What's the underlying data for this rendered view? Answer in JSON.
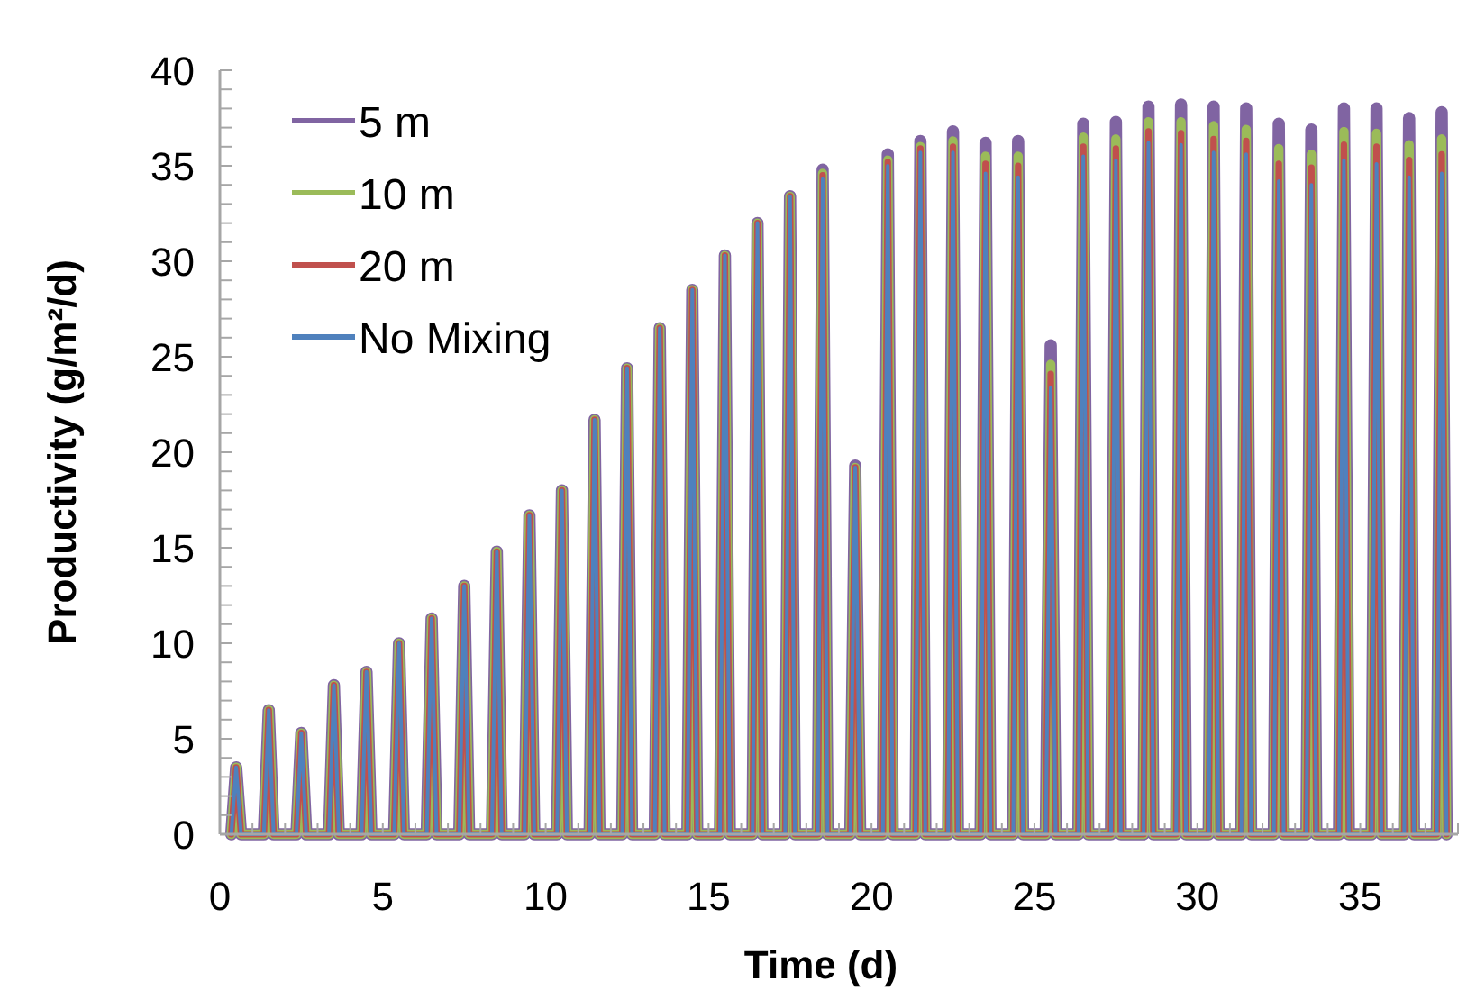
{
  "chart_data": {
    "type": "line",
    "xlabel": "Time (d)",
    "ylabel": "Productivity (g/m²/d)",
    "xlim": [
      0,
      38
    ],
    "xticks": [
      0,
      {
        "value": 1,
        "label": null
      },
      {
        "value": 2,
        "label": null
      },
      {
        "value": 3,
        "label": null
      },
      {
        "value": 4,
        "label": null
      },
      5,
      {
        "value": 6,
        "label": null
      },
      {
        "value": 7,
        "label": null
      },
      {
        "value": 8,
        "label": null
      },
      {
        "value": 9,
        "label": null
      },
      10,
      {
        "value": 11,
        "label": null
      },
      {
        "value": 12,
        "label": null
      },
      {
        "value": 13,
        "label": null
      },
      {
        "value": 14,
        "label": null
      },
      15,
      {
        "value": 16,
        "label": null
      },
      {
        "value": 17,
        "label": null
      },
      {
        "value": 18,
        "label": null
      },
      {
        "value": 19,
        "label": null
      },
      20,
      {
        "value": 21,
        "label": null
      },
      {
        "value": 22,
        "label": null
      },
      {
        "value": 23,
        "label": null
      },
      {
        "value": 24,
        "label": null
      },
      25,
      {
        "value": 26,
        "label": null
      },
      {
        "value": 27,
        "label": null
      },
      {
        "value": 28,
        "label": null
      },
      {
        "value": 29,
        "label": null
      },
      30,
      {
        "value": 31,
        "label": null
      },
      {
        "value": 32,
        "label": null
      },
      {
        "value": 33,
        "label": null
      },
      {
        "value": 34,
        "label": null
      },
      35,
      {
        "value": 36,
        "label": null
      },
      {
        "value": 37,
        "label": null
      },
      {
        "value": 38,
        "label": null
      }
    ],
    "ylim": [
      0,
      40
    ],
    "yticks": [
      0,
      {
        "value": 1,
        "label": null
      },
      {
        "value": 2,
        "label": null
      },
      {
        "value": 3,
        "label": null
      },
      {
        "value": 4,
        "label": null
      },
      5,
      {
        "value": 6,
        "label": null
      },
      {
        "value": 7,
        "label": null
      },
      {
        "value": 8,
        "label": null
      },
      {
        "value": 9,
        "label": null
      },
      10,
      {
        "value": 11,
        "label": null
      },
      {
        "value": 12,
        "label": null
      },
      {
        "value": 13,
        "label": null
      },
      {
        "value": 14,
        "label": null
      },
      15,
      {
        "value": 16,
        "label": null
      },
      {
        "value": 17,
        "label": null
      },
      {
        "value": 18,
        "label": null
      },
      {
        "value": 19,
        "label": null
      },
      20,
      {
        "value": 21,
        "label": null
      },
      {
        "value": 22,
        "label": null
      },
      {
        "value": 23,
        "label": null
      },
      {
        "value": 24,
        "label": null
      },
      25,
      {
        "value": 26,
        "label": null
      },
      {
        "value": 27,
        "label": null
      },
      {
        "value": 28,
        "label": null
      },
      {
        "value": 29,
        "label": null
      },
      30,
      {
        "value": 31,
        "label": null
      },
      {
        "value": 32,
        "label": null
      },
      {
        "value": 33,
        "label": null
      },
      {
        "value": 34,
        "label": null
      },
      35,
      {
        "value": 36,
        "label": null
      },
      {
        "value": 37,
        "label": null
      },
      {
        "value": 38,
        "label": null
      },
      {
        "value": 39,
        "label": null
      },
      40
    ],
    "grid": false,
    "legend": "top left",
    "marker": "none",
    "line_style": "solid",
    "x": [
      0.35,
      0.5,
      0.65,
      1.35,
      1.5,
      1.65,
      2.35,
      2.5,
      2.65,
      3.35,
      3.5,
      3.65,
      4.35,
      4.5,
      4.65,
      5.35,
      5.5,
      5.65,
      6.35,
      6.5,
      6.65,
      7.35,
      7.5,
      7.65,
      8.35,
      8.5,
      8.65,
      9.35,
      9.5,
      9.65,
      10.35,
      10.5,
      10.65,
      11.35,
      11.5,
      11.65,
      12.35,
      12.5,
      12.65,
      13.35,
      13.5,
      13.65,
      14.35,
      14.5,
      14.65,
      15.35,
      15.5,
      15.65,
      16.35,
      16.5,
      16.65,
      17.35,
      17.5,
      17.65,
      18.35,
      18.5,
      18.65,
      19.35,
      19.5,
      19.65,
      20.35,
      20.5,
      20.65,
      21.35,
      21.5,
      21.65,
      22.35,
      22.5,
      22.65,
      23.35,
      23.5,
      23.65,
      24.35,
      24.5,
      24.65,
      25.35,
      25.5,
      25.65,
      26.35,
      26.5,
      26.65,
      27.35,
      27.5,
      27.65,
      28.35,
      28.5,
      28.65,
      29.35,
      29.5,
      29.65,
      30.35,
      30.5,
      30.65,
      31.35,
      31.5,
      31.65,
      32.35,
      32.5,
      32.65,
      33.35,
      33.5,
      33.65,
      34.35,
      34.5,
      34.65,
      35.35,
      35.5,
      35.65,
      36.35,
      36.5,
      36.65,
      37.35,
      37.5,
      37.65
    ],
    "series": [
      {
        "name": "5 m",
        "color": "#8064a2",
        "values": [
          0,
          3.5,
          0,
          0,
          6.5,
          0,
          0,
          5.3,
          0,
          0,
          7.8,
          0,
          0,
          8.5,
          0,
          0,
          10.0,
          0,
          0,
          11.3,
          0,
          0,
          13.0,
          0,
          0,
          14.8,
          0,
          0,
          16.7,
          0,
          0,
          18.0,
          0,
          0,
          21.7,
          0,
          0,
          24.4,
          0,
          0,
          26.5,
          0,
          0,
          28.5,
          0,
          0,
          30.3,
          0,
          0,
          32.0,
          0,
          0,
          33.4,
          0,
          0,
          34.8,
          0,
          0,
          19.3,
          0,
          0,
          35.6,
          0,
          0,
          36.3,
          0,
          0,
          36.8,
          0,
          0,
          36.2,
          0,
          0,
          36.3,
          0,
          0,
          25.6,
          0,
          0,
          37.2,
          0,
          0,
          37.3,
          0,
          0,
          38.1,
          0,
          0,
          38.2,
          0,
          0,
          38.1,
          0,
          0,
          38.0,
          0,
          0,
          37.2,
          0,
          0,
          36.9,
          0,
          0,
          38.0,
          0,
          0,
          38.0,
          0,
          0,
          37.5,
          0,
          0,
          37.8,
          0
        ]
      },
      {
        "name": "10 m",
        "color": "#9bbb59",
        "values": [
          0,
          3.5,
          0,
          0,
          6.5,
          0,
          0,
          5.3,
          0,
          0,
          7.8,
          0,
          0,
          8.5,
          0,
          0,
          10.0,
          0,
          0,
          11.3,
          0,
          0,
          13.0,
          0,
          0,
          14.8,
          0,
          0,
          16.7,
          0,
          0,
          18.0,
          0,
          0,
          21.7,
          0,
          0,
          24.4,
          0,
          0,
          26.5,
          0,
          0,
          28.5,
          0,
          0,
          30.3,
          0,
          0,
          32.0,
          0,
          0,
          33.4,
          0,
          0,
          34.6,
          0,
          0,
          19.2,
          0,
          0,
          35.3,
          0,
          0,
          36.0,
          0,
          0,
          36.3,
          0,
          0,
          35.5,
          0,
          0,
          35.5,
          0,
          0,
          24.6,
          0,
          0,
          36.5,
          0,
          0,
          36.4,
          0,
          0,
          37.3,
          0,
          0,
          37.3,
          0,
          0,
          37.1,
          0,
          0,
          36.9,
          0,
          0,
          35.9,
          0,
          0,
          35.6,
          0,
          0,
          36.8,
          0,
          0,
          36.7,
          0,
          0,
          36.1,
          0,
          0,
          36.4,
          0
        ]
      },
      {
        "name": "20 m",
        "color": "#c0504d",
        "values": [
          0,
          3.5,
          0,
          0,
          6.5,
          0,
          0,
          5.3,
          0,
          0,
          7.8,
          0,
          0,
          8.5,
          0,
          0,
          10.0,
          0,
          0,
          11.3,
          0,
          0,
          13.0,
          0,
          0,
          14.8,
          0,
          0,
          16.7,
          0,
          0,
          18.0,
          0,
          0,
          21.7,
          0,
          0,
          24.4,
          0,
          0,
          26.5,
          0,
          0,
          28.5,
          0,
          0,
          30.3,
          0,
          0,
          32.0,
          0,
          0,
          33.4,
          0,
          0,
          34.5,
          0,
          0,
          19.2,
          0,
          0,
          35.2,
          0,
          0,
          35.9,
          0,
          0,
          36.0,
          0,
          0,
          35.1,
          0,
          0,
          35.0,
          0,
          0,
          24.1,
          0,
          0,
          36.0,
          0,
          0,
          35.9,
          0,
          0,
          36.8,
          0,
          0,
          36.7,
          0,
          0,
          36.4,
          0,
          0,
          36.3,
          0,
          0,
          35.1,
          0,
          0,
          34.9,
          0,
          0,
          36.1,
          0,
          0,
          36.0,
          0,
          0,
          35.3,
          0,
          0,
          35.6,
          0
        ]
      },
      {
        "name": "No Mixing",
        "color": "#4f81bd",
        "values": [
          0,
          3.5,
          0,
          0,
          6.5,
          0,
          0,
          5.3,
          0,
          0,
          7.8,
          0,
          0,
          8.5,
          0,
          0,
          10.0,
          0,
          0,
          11.3,
          0,
          0,
          13.0,
          0,
          0,
          14.8,
          0,
          0,
          16.7,
          0,
          0,
          18.0,
          0,
          0,
          21.7,
          0,
          0,
          24.4,
          0,
          0,
          26.5,
          0,
          0,
          28.5,
          0,
          0,
          30.3,
          0,
          0,
          32.0,
          0,
          0,
          33.4,
          0,
          0,
          34.3,
          0,
          0,
          19.2,
          0,
          0,
          35.0,
          0,
          0,
          35.7,
          0,
          0,
          35.7,
          0,
          0,
          34.6,
          0,
          0,
          34.4,
          0,
          0,
          23.4,
          0,
          0,
          35.5,
          0,
          0,
          35.3,
          0,
          0,
          36.2,
          0,
          0,
          36.1,
          0,
          0,
          35.7,
          0,
          0,
          35.6,
          0,
          0,
          34.2,
          0,
          0,
          34.0,
          0,
          0,
          35.3,
          0,
          0,
          35.1,
          0,
          0,
          34.4,
          0,
          0,
          34.6,
          0
        ]
      }
    ]
  }
}
